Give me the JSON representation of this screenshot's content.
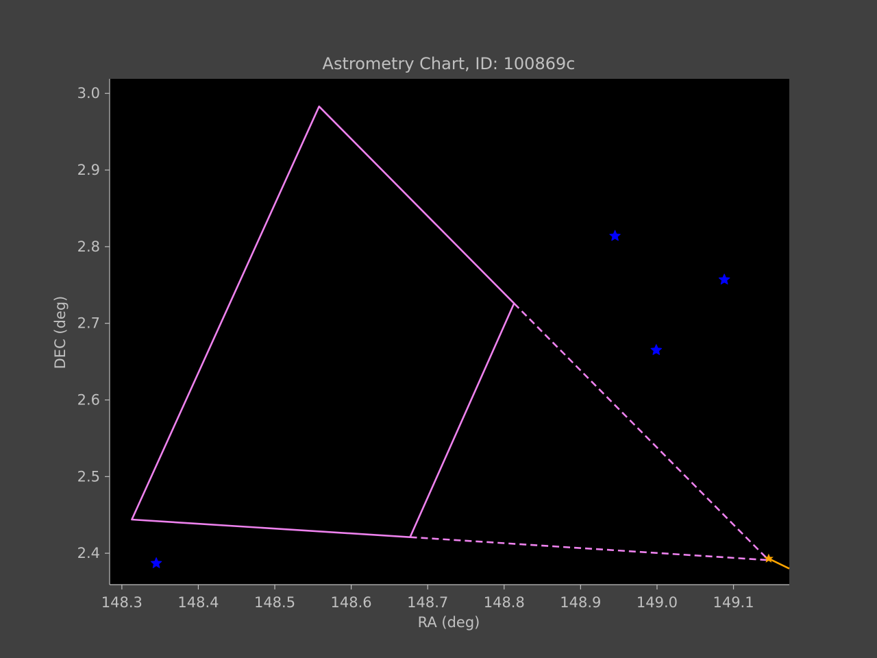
{
  "chart_data": {
    "type": "scatter",
    "title": "Astrometry Chart, ID: 100869c",
    "xlabel": "RA (deg)",
    "ylabel": "DEC (deg)",
    "xlim": [
      148.284,
      149.173
    ],
    "ylim": [
      2.359,
      3.019
    ],
    "xticks": [
      "148.3",
      "148.4",
      "148.5",
      "148.6",
      "148.7",
      "148.8",
      "148.9",
      "149.0",
      "149.1"
    ],
    "yticks": [
      "2.4",
      "2.5",
      "2.6",
      "2.7",
      "2.8",
      "2.9",
      "3.0"
    ],
    "grid": false,
    "background": "#000000",
    "figure_background": "#404040",
    "text_color": "#c0c0c0",
    "field_color": "#ee82ee",
    "star_color": "#0000ff",
    "target_color": "#ffa500",
    "field_polygon": [
      {
        "x": 148.313,
        "y": 2.444
      },
      {
        "x": 148.558,
        "y": 2.983
      },
      {
        "x": 148.813,
        "y": 2.726
      },
      {
        "x": 148.677,
        "y": 2.421
      }
    ],
    "projection_lines": [
      {
        "from": {
          "x": 148.813,
          "y": 2.726
        },
        "to": {
          "x": 149.146,
          "y": 2.391
        }
      },
      {
        "from": {
          "x": 148.677,
          "y": 2.421
        },
        "to": {
          "x": 149.146,
          "y": 2.391
        }
      }
    ],
    "stars": [
      {
        "x": 148.345,
        "y": 2.387
      },
      {
        "x": 148.945,
        "y": 2.814
      },
      {
        "x": 148.999,
        "y": 2.665
      },
      {
        "x": 149.088,
        "y": 2.757
      }
    ],
    "target": {
      "x": 149.146,
      "y": 2.393
    },
    "trajectory": [
      {
        "x": 149.146,
        "y": 2.393
      },
      {
        "x": 149.173,
        "y": 2.38
      }
    ]
  }
}
